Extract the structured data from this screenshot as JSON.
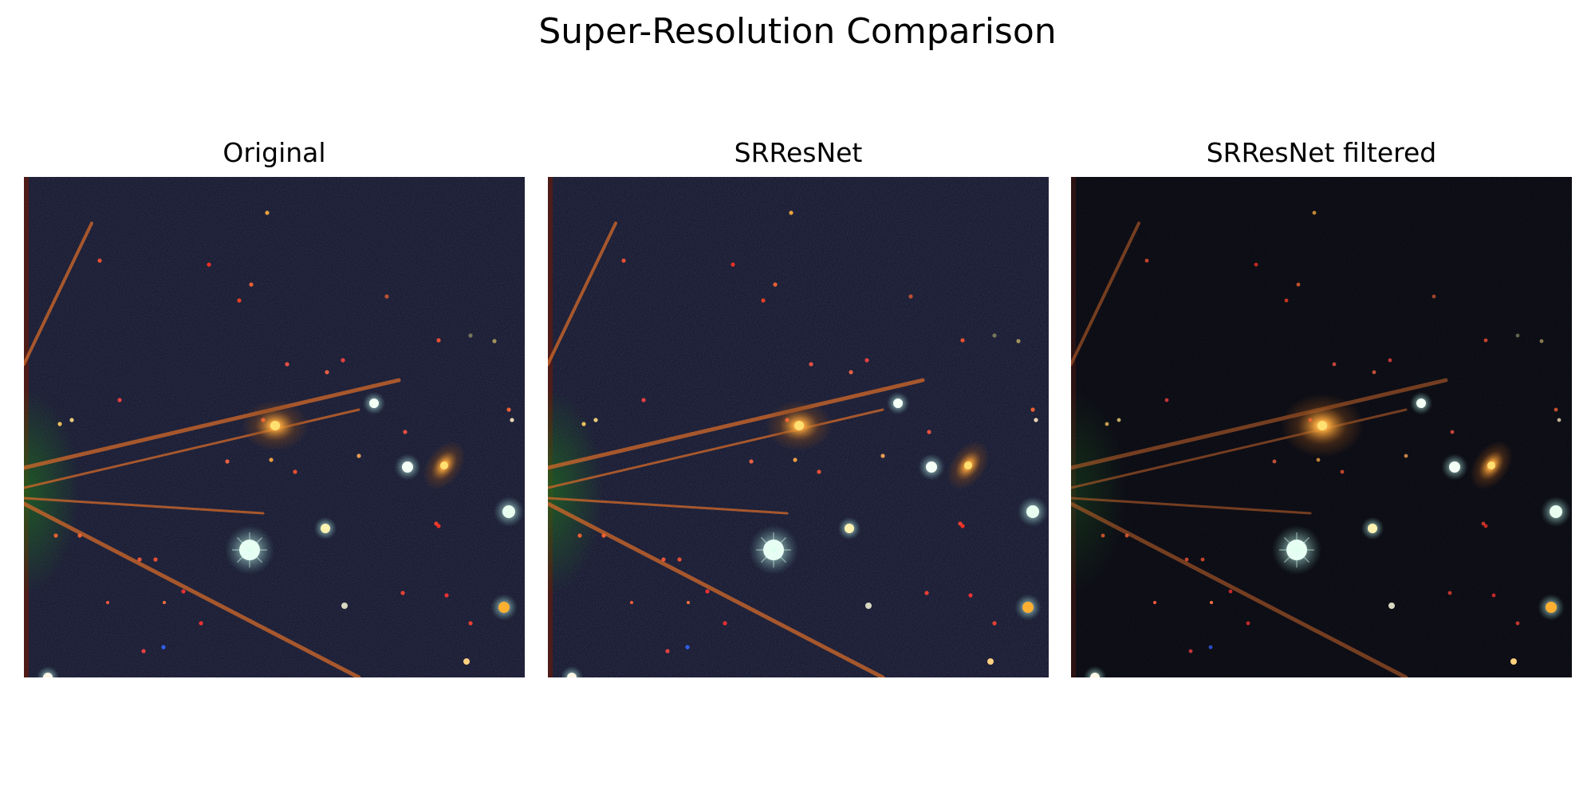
{
  "figure": {
    "title": "Super-Resolution Comparison"
  },
  "panels": [
    {
      "title": "Original",
      "variant": "original"
    },
    {
      "title": "SRResNet",
      "variant": "srresnet"
    },
    {
      "title": "SRResNet filtered",
      "variant": "filtered"
    }
  ],
  "colors": {
    "sky_original": "#0b0d1c",
    "sky_filtered": "#050509",
    "galaxy": "#f2a13a",
    "spike": "#c9652a",
    "green_halo": "#1f6a1f",
    "star_white": "#e8fff4"
  }
}
